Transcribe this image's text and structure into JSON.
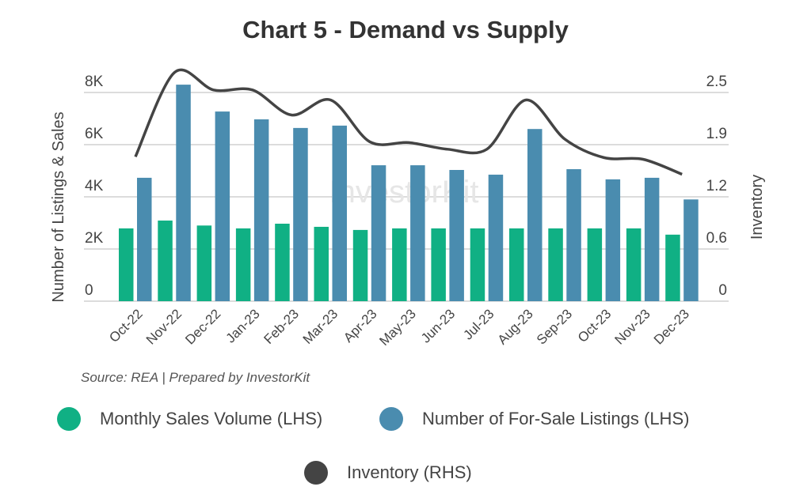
{
  "chart_data": {
    "type": "bar",
    "title": "Chart 5 - Demand vs Supply",
    "source": "Source: REA | Prepared by InvestorKit",
    "watermark": "InvestorKit",
    "categories": [
      "Oct-22",
      "Nov-22",
      "Dec-22",
      "Jan-23",
      "Feb-23",
      "Mar-23",
      "Apr-23",
      "May-23",
      "Jun-23",
      "Jul-23",
      "Aug-23",
      "Sep-23",
      "Oct-23",
      "Nov-23",
      "Dec-23"
    ],
    "ylabel": "Number of Listings & Sales",
    "y2label": "Inventory",
    "ylim": [
      0,
      8000
    ],
    "y2lim": [
      0,
      2.5
    ],
    "yticks": [
      "0",
      "2K",
      "4K",
      "6K",
      "8K"
    ],
    "y2ticks": [
      "0",
      "0.6",
      "1.2",
      "1.9",
      "2.5"
    ],
    "grid": true,
    "legend_position": "bottom",
    "series": [
      {
        "name": "Monthly Sales Volume (LHS)",
        "type": "bar",
        "axis": "left",
        "color": "#10b084",
        "values": [
          2790,
          3090,
          2900,
          2790,
          2970,
          2850,
          2730,
          2790,
          2790,
          2790,
          2790,
          2790,
          2790,
          2790,
          2550
        ]
      },
      {
        "name": "Number of For-Sale Listings (LHS)",
        "type": "bar",
        "axis": "left",
        "color": "#4a8caf",
        "values": [
          4730,
          8300,
          7270,
          6970,
          6640,
          6730,
          5210,
          5210,
          5030,
          4850,
          6600,
          5060,
          4670,
          4730,
          3900
        ]
      },
      {
        "name": "Inventory (RHS)",
        "type": "line",
        "axis": "right",
        "color": "#444444",
        "values": [
          1.73,
          2.74,
          2.53,
          2.53,
          2.23,
          2.41,
          1.91,
          1.9,
          1.82,
          1.82,
          2.41,
          1.94,
          1.72,
          1.7,
          1.52
        ]
      }
    ]
  }
}
